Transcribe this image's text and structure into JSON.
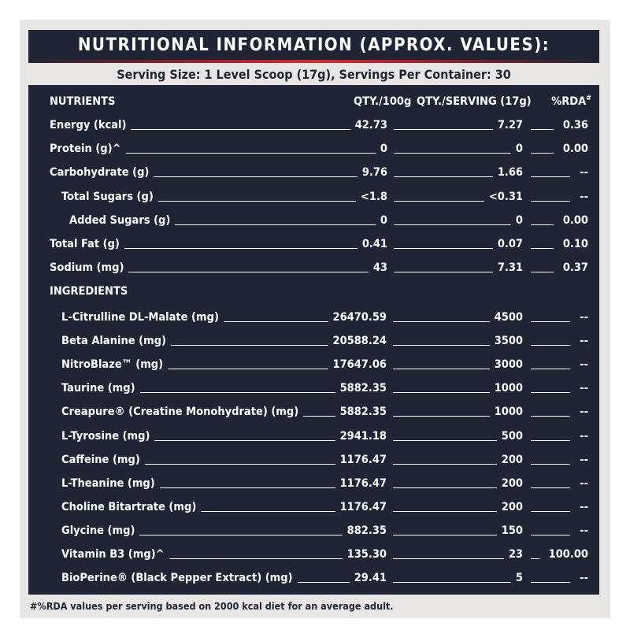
{
  "title": "NUTRITIONAL INFORMATION (APPROX. VALUES):",
  "serving": "Serving Size: 1 Level Scoop (17g), Servings Per Container: 30",
  "headers": {
    "nutrients": "NUTRIENTS",
    "qty100": "QTY./100g",
    "qtyserving": "QTY./SERVING (17g)",
    "rda": "%RDA#"
  },
  "nutrients": [
    {
      "name": "Energy (kcal)",
      "per100": "42.73",
      "serving": "7.27",
      "rda": "0.36"
    },
    {
      "name": "Protein (g)^",
      "per100": "0",
      "serving": "0",
      "rda": "0.00"
    },
    {
      "name": "Carbohydrate (g)",
      "per100": "9.76",
      "serving": "1.66",
      "rda": "--"
    },
    {
      "name": "Total Sugars (g)",
      "per100": "<1.8",
      "serving": "<0.31",
      "rda": "--"
    },
    {
      "name": "Added Sugars (g)",
      "per100": "0",
      "serving": "0",
      "rda": "0.00"
    },
    {
      "name": "Total Fat (g)",
      "per100": "0.41",
      "serving": "0.07",
      "rda": "0.10"
    },
    {
      "name": "Sodium (mg)",
      "per100": "43",
      "serving": "7.31",
      "rda": "0.37"
    }
  ],
  "ingredients_header": "INGREDIENTS",
  "ingredients": [
    {
      "name": "L-Citrulline DL-Malate (mg)",
      "per100": "26470.59",
      "serving": "4500",
      "rda": "--"
    },
    {
      "name": "Beta Alanine (mg)",
      "per100": "20588.24",
      "serving": "3500",
      "rda": "--"
    },
    {
      "name": "NitroBlaze™ (mg)",
      "per100": "17647.06",
      "serving": "3000",
      "rda": "--"
    },
    {
      "name": "Taurine  (mg)",
      "per100": "5882.35",
      "serving": "1000",
      "rda": "--"
    },
    {
      "name": "Creapure® (Creatine Monohydrate) (mg)",
      "per100": "5882.35",
      "serving": "1000",
      "rda": "--"
    },
    {
      "name": "L-Tyrosine (mg)",
      "per100": "2941.18",
      "serving": "500",
      "rda": "--"
    },
    {
      "name": "Caffeine (mg)",
      "per100": "1176.47",
      "serving": "200",
      "rda": "--"
    },
    {
      "name": "L-Theanine (mg)",
      "per100": "1176.47",
      "serving": "200",
      "rda": "--"
    },
    {
      "name": "Choline Bitartrate (mg)",
      "per100": "1176.47",
      "serving": "200",
      "rda": "--"
    },
    {
      "name": "Glycine (mg)",
      "per100": "882.35",
      "serving": "150",
      "rda": "--"
    },
    {
      "name": "Vitamin B3 (mg)^",
      "per100": "135.30",
      "serving": "23",
      "rda": "100.00"
    },
    {
      "name": "BioPerine® (Black Pepper Extract) (mg)",
      "per100": "29.41",
      "serving": "5",
      "rda": "--"
    }
  ],
  "footnote": "#%RDA values per serving based on 2000 kcal diet for an average adult.",
  "colors": {
    "panel": "#1f2535",
    "accent": "#d92b33",
    "background": "#e9e6e6"
  }
}
